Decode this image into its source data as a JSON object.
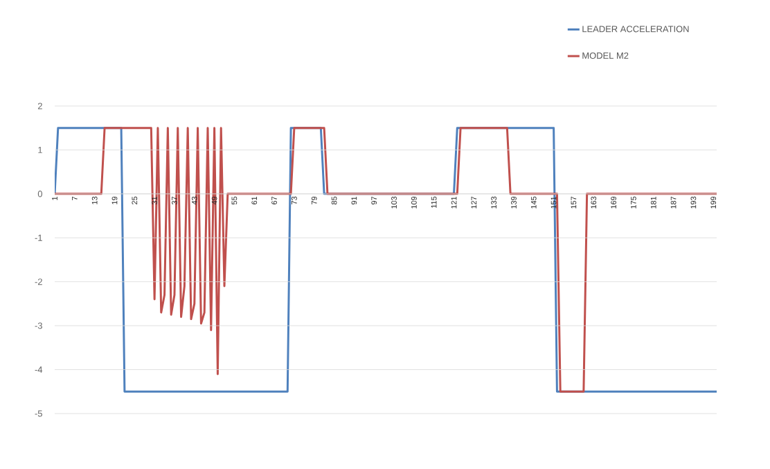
{
  "chart_data": {
    "type": "line",
    "xlim": [
      1,
      200
    ],
    "xticks": [
      1,
      7,
      13,
      19,
      25,
      31,
      37,
      43,
      49,
      55,
      61,
      67,
      73,
      79,
      85,
      91,
      97,
      103,
      109,
      115,
      121,
      127,
      133,
      139,
      145,
      151,
      157,
      163,
      169,
      175,
      181,
      187,
      193,
      199
    ],
    "ylim": [
      -5,
      2
    ],
    "yticks": [
      -5,
      -4,
      -3,
      -2,
      -1,
      0,
      1,
      2
    ],
    "grid": "y",
    "legend": "top right",
    "series": [
      {
        "name": "LEADER ACCELERATION",
        "color": "#4f81bd",
        "x": [
          1,
          2,
          21,
          22,
          71,
          72,
          81,
          82,
          121,
          122,
          151,
          152,
          200
        ],
        "values": [
          0,
          1.5,
          1.5,
          -4.5,
          -4.5,
          1.5,
          1.5,
          0,
          0,
          1.5,
          1.5,
          -4.5,
          -4.5
        ]
      },
      {
        "name": "MODEL M2",
        "color": "#c0504d",
        "x": [
          1,
          15,
          16,
          30,
          31,
          32,
          33,
          34,
          35,
          36,
          37,
          38,
          39,
          40,
          41,
          42,
          43,
          44,
          45,
          46,
          47,
          48,
          49,
          50,
          51,
          52,
          53,
          72,
          73,
          82,
          83,
          122,
          123,
          137,
          138,
          152,
          153,
          160,
          161,
          200
        ],
        "values": [
          0,
          0,
          1.5,
          1.5,
          -2.4,
          1.5,
          -2.7,
          -2.3,
          1.5,
          -2.75,
          -2.3,
          1.5,
          -2.8,
          -2.1,
          1.5,
          -2.85,
          -2.5,
          1.5,
          -2.95,
          -2.7,
          1.5,
          -3.1,
          1.5,
          -4.1,
          1.5,
          -2.1,
          0,
          0,
          1.5,
          1.5,
          0,
          0,
          1.5,
          1.5,
          0,
          0,
          -4.5,
          -4.5,
          0,
          0
        ]
      }
    ]
  }
}
